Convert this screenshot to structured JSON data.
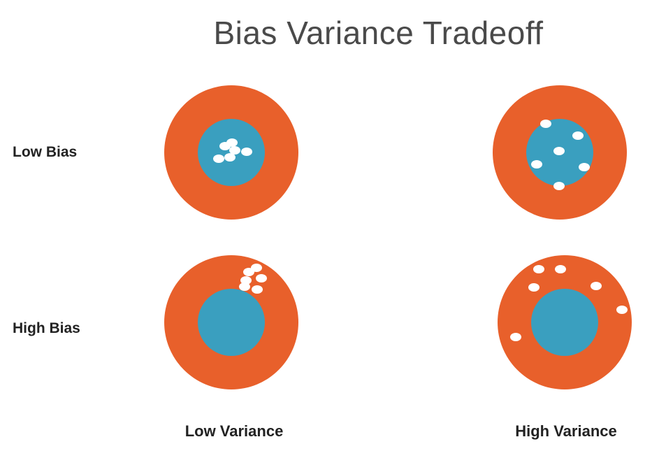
{
  "title": "Bias Variance Tradeoff",
  "rows": {
    "low_bias": "Low Bias",
    "high_bias": "High Bias"
  },
  "columns": {
    "low_variance": "Low Variance",
    "high_variance": "High Variance"
  },
  "colors": {
    "outer_ring": "#e8602b",
    "bullseye": "#3a9fbf",
    "shot": "#ffffff"
  }
}
